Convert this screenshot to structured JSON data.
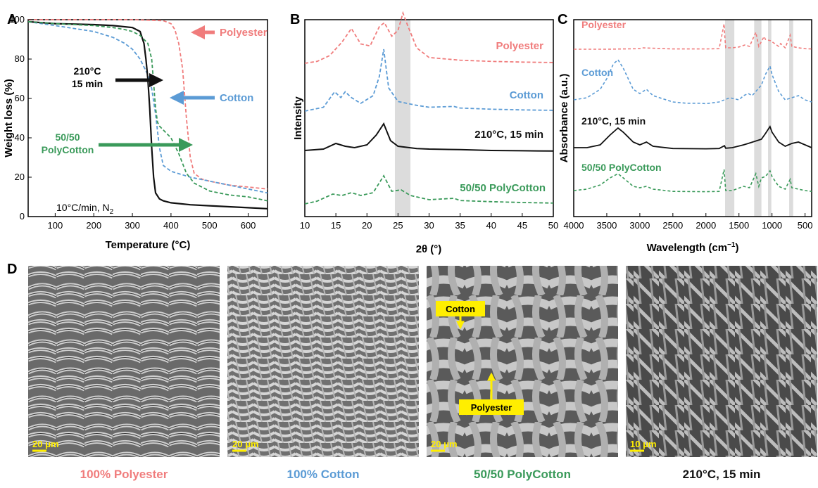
{
  "colors": {
    "polyester": "#f07c7c",
    "cotton": "#5b9bd5",
    "polycotton": "#3a9a5a",
    "treated": "#111111",
    "highlight": "#d9d9d9",
    "sem_label": "#ffee00"
  },
  "panels": {
    "A": {
      "letter": "A",
      "condition": "10°C/min, N",
      "condition_sub": "2",
      "arrow_treated": [
        "210°C",
        "15 min"
      ],
      "arrow_polyester": "Polyester",
      "arrow_cotton": "Cotton",
      "arrow_polycotton": [
        "50/50",
        "PolyCotton"
      ]
    },
    "B": {
      "letter": "B"
    },
    "C": {
      "letter": "C"
    },
    "D": {
      "letter": "D"
    }
  },
  "sem": {
    "images": [
      {
        "caption": "100% Polyester",
        "scale": "20 μm"
      },
      {
        "caption": "100% Cotton",
        "scale": "20 μm"
      },
      {
        "caption": "50/50 PolyCotton",
        "scale": "20 μm",
        "labels": [
          "Cotton",
          "Polyester"
        ]
      },
      {
        "caption": "210°C, 15 min",
        "scale": "10 μm"
      }
    ]
  },
  "chart_data": [
    {
      "type": "line",
      "xlabel": "Temperature (°C)",
      "ylabel": "Weight loss (%)",
      "xlim": [
        30,
        650
      ],
      "ylim": [
        0,
        100
      ],
      "xticks": [
        100,
        200,
        300,
        400,
        500,
        600
      ],
      "yticks": [
        0,
        20,
        40,
        60,
        80,
        100
      ],
      "grid": false,
      "series": [
        {
          "name": "Polyester",
          "x": [
            30,
            300,
            380,
            400,
            410,
            420,
            430,
            440,
            450,
            460,
            480,
            500,
            550,
            600,
            650
          ],
          "y": [
            100,
            100,
            99.5,
            98,
            95,
            88,
            75,
            50,
            30,
            22,
            19,
            18,
            16,
            15,
            14
          ],
          "color": "#f07c7c",
          "dash": true
        },
        {
          "name": "Cotton",
          "x": [
            30,
            100,
            200,
            250,
            280,
            300,
            320,
            340,
            350,
            360,
            370,
            380,
            400,
            450,
            500,
            550,
            600,
            650
          ],
          "y": [
            99,
            97,
            94,
            91,
            88,
            85,
            80,
            72,
            65,
            52,
            35,
            26,
            23,
            20,
            18,
            16,
            14,
            12
          ],
          "color": "#5b9bd5",
          "dash": true
        },
        {
          "name": "210°C, 15 min",
          "x": [
            30,
            100,
            200,
            250,
            300,
            320,
            330,
            335,
            340,
            345,
            350,
            355,
            360,
            370,
            380,
            400,
            450,
            500,
            550,
            600,
            650
          ],
          "y": [
            99,
            98,
            97.5,
            97,
            96,
            94,
            88,
            80,
            70,
            55,
            35,
            20,
            12,
            9,
            8,
            7,
            6,
            5.5,
            5,
            4.5,
            4
          ],
          "color": "#111111",
          "dash": false
        },
        {
          "name": "50/50 PolyCotton",
          "x": [
            30,
            100,
            200,
            250,
            280,
            300,
            320,
            340,
            350,
            355,
            360,
            365,
            370,
            380,
            390,
            400,
            420,
            440,
            460,
            500,
            550,
            600,
            650
          ],
          "y": [
            99,
            98,
            97,
            96,
            95,
            94,
            92,
            88,
            80,
            68,
            55,
            48,
            46,
            44,
            42,
            40,
            32,
            22,
            17,
            13,
            11,
            10,
            8
          ],
          "color": "#3a9a5a",
          "dash": true
        }
      ]
    },
    {
      "type": "line",
      "xlabel": "2θ (°)",
      "ylabel": "Intensity",
      "xlim": [
        10,
        50
      ],
      "xticks": [
        10,
        15,
        20,
        25,
        30,
        35,
        40,
        45,
        50
      ],
      "highlight_band": [
        24.5,
        27
      ],
      "series": [
        {
          "name": "Polyester",
          "x": [
            10,
            12,
            14,
            16,
            17.5,
            19,
            20.5,
            22,
            22.8,
            24,
            25,
            25.8,
            26.5,
            28,
            30,
            35,
            40,
            45,
            50
          ],
          "y": [
            0,
            0.05,
            0.2,
            0.55,
            0.9,
            0.5,
            0.45,
            0.95,
            1.05,
            0.7,
            0.85,
            1.3,
            1.0,
            0.4,
            0.15,
            0.08,
            0.05,
            0.03,
            0.02
          ],
          "color": "#f07c7c",
          "dash": true,
          "label": "Polyester"
        },
        {
          "name": "Cotton",
          "x": [
            10,
            13,
            14.8,
            15.8,
            16.5,
            17.5,
            19,
            21,
            22,
            22.7,
            23.5,
            25,
            28,
            30,
            34,
            35,
            40,
            45,
            50
          ],
          "y": [
            0,
            0.1,
            0.5,
            0.35,
            0.5,
            0.35,
            0.2,
            0.4,
            0.9,
            1.6,
            0.6,
            0.25,
            0.15,
            0.1,
            0.12,
            0.08,
            0.05,
            0.03,
            0.02
          ],
          "color": "#5b9bd5",
          "dash": true,
          "label": "Cotton"
        },
        {
          "name": "210°C, 15 min",
          "x": [
            10,
            13,
            15,
            16.5,
            18,
            20,
            21.5,
            22.7,
            23.8,
            25,
            28,
            30,
            35,
            40,
            45,
            50
          ],
          "y": [
            0.05,
            0.1,
            0.3,
            0.2,
            0.15,
            0.25,
            0.6,
            1.0,
            0.4,
            0.2,
            0.12,
            0.1,
            0.08,
            0.05,
            0.04,
            0.03
          ],
          "color": "#111111",
          "dash": false,
          "label": "210°C, 15 min"
        },
        {
          "name": "50/50 PolyCotton",
          "x": [
            10,
            12,
            14.5,
            16,
            17.5,
            19,
            21,
            22.7,
            24,
            25.5,
            27,
            30,
            34,
            35,
            40,
            45,
            50
          ],
          "y": [
            0,
            0.1,
            0.35,
            0.3,
            0.4,
            0.3,
            0.4,
            1.0,
            0.45,
            0.5,
            0.3,
            0.15,
            0.2,
            0.12,
            0.08,
            0.05,
            0.03
          ],
          "color": "#3a9a5a",
          "dash": true,
          "label": "50/50 PolyCotton"
        }
      ]
    },
    {
      "type": "line",
      "xlabel": "Wavelength (cm−1)",
      "xlabel_main": "Wavelength (cm",
      "xlabel_sup": "−1",
      "xlabel_end": ")",
      "ylabel": "Absorbance (a.u.)",
      "xlim": [
        4000,
        400
      ],
      "xticks": [
        4000,
        3500,
        3000,
        2500,
        2000,
        1500,
        1000,
        500
      ],
      "highlight_bands": [
        [
          1710,
          1570
        ],
        [
          1270,
          1160
        ],
        [
          1060,
          1010
        ],
        [
          740,
          680
        ]
      ],
      "series": [
        {
          "name": "Polyester",
          "x": [
            4000,
            3500,
            3000,
            2960,
            2500,
            2000,
            1800,
            1725,
            1715,
            1700,
            1600,
            1500,
            1410,
            1340,
            1245,
            1200,
            1120,
            1100,
            1020,
            900,
            870,
            800,
            725,
            700,
            600,
            500,
            400
          ],
          "y": [
            0,
            0,
            0.02,
            0.05,
            0.01,
            0.01,
            0.02,
            0.9,
            0.5,
            0.05,
            0.05,
            0.08,
            0.15,
            0.1,
            0.6,
            0.1,
            0.45,
            0.35,
            0.3,
            0.1,
            0.2,
            0.05,
            0.5,
            0.1,
            0.05,
            0.02,
            0.01
          ],
          "color": "#f07c7c",
          "dash": true,
          "label": "Polyester"
        },
        {
          "name": "Cotton",
          "x": [
            4000,
            3800,
            3600,
            3500,
            3400,
            3330,
            3250,
            3100,
            3000,
            2900,
            2800,
            2500,
            2300,
            2100,
            2000,
            1800,
            1640,
            1500,
            1430,
            1360,
            1300,
            1160,
            1100,
            1030,
            1000,
            900,
            800,
            700,
            600,
            500,
            400
          ],
          "y": [
            0.1,
            0.15,
            0.35,
            0.6,
            0.95,
            1.05,
            0.85,
            0.35,
            0.25,
            0.35,
            0.2,
            0.05,
            0.02,
            0.02,
            0.01,
            0.05,
            0.15,
            0.1,
            0.2,
            0.25,
            0.2,
            0.45,
            0.7,
            0.9,
            0.7,
            0.3,
            0.1,
            0.15,
            0.2,
            0.1,
            0.05
          ],
          "color": "#5b9bd5",
          "dash": true,
          "label": "Cotton"
        },
        {
          "name": "210°C, 15 min",
          "x": [
            4000,
            3800,
            3600,
            3450,
            3330,
            3250,
            3100,
            3000,
            2900,
            2800,
            2500,
            2000,
            1800,
            1720,
            1700,
            1600,
            1430,
            1360,
            1160,
            1100,
            1030,
            1000,
            900,
            800,
            700,
            600,
            500,
            400
          ],
          "y": [
            0.05,
            0.05,
            0.15,
            0.5,
            0.75,
            0.6,
            0.25,
            0.15,
            0.25,
            0.1,
            0.02,
            0.01,
            0.02,
            0.12,
            0.03,
            0.05,
            0.15,
            0.2,
            0.35,
            0.55,
            0.8,
            0.6,
            0.25,
            0.1,
            0.2,
            0.25,
            0.15,
            0.05
          ],
          "color": "#111111",
          "dash": false,
          "label": "210°C, 15 min"
        },
        {
          "name": "50/50 PolyCotton",
          "x": [
            4000,
            3800,
            3600,
            3450,
            3330,
            3250,
            3100,
            3000,
            2900,
            2800,
            2500,
            2000,
            1800,
            1725,
            1715,
            1700,
            1600,
            1430,
            1340,
            1245,
            1200,
            1160,
            1100,
            1030,
            1000,
            900,
            800,
            725,
            700,
            600,
            500,
            400
          ],
          "y": [
            0.05,
            0.1,
            0.25,
            0.5,
            0.65,
            0.5,
            0.2,
            0.15,
            0.2,
            0.1,
            0.02,
            0.01,
            0.02,
            0.8,
            0.5,
            0.05,
            0.05,
            0.2,
            0.15,
            0.65,
            0.2,
            0.5,
            0.55,
            0.75,
            0.55,
            0.2,
            0.1,
            0.45,
            0.15,
            0.1,
            0.05,
            0.02
          ],
          "color": "#3a9a5a",
          "dash": true,
          "label": "50/50 PolyCotton"
        }
      ]
    }
  ]
}
